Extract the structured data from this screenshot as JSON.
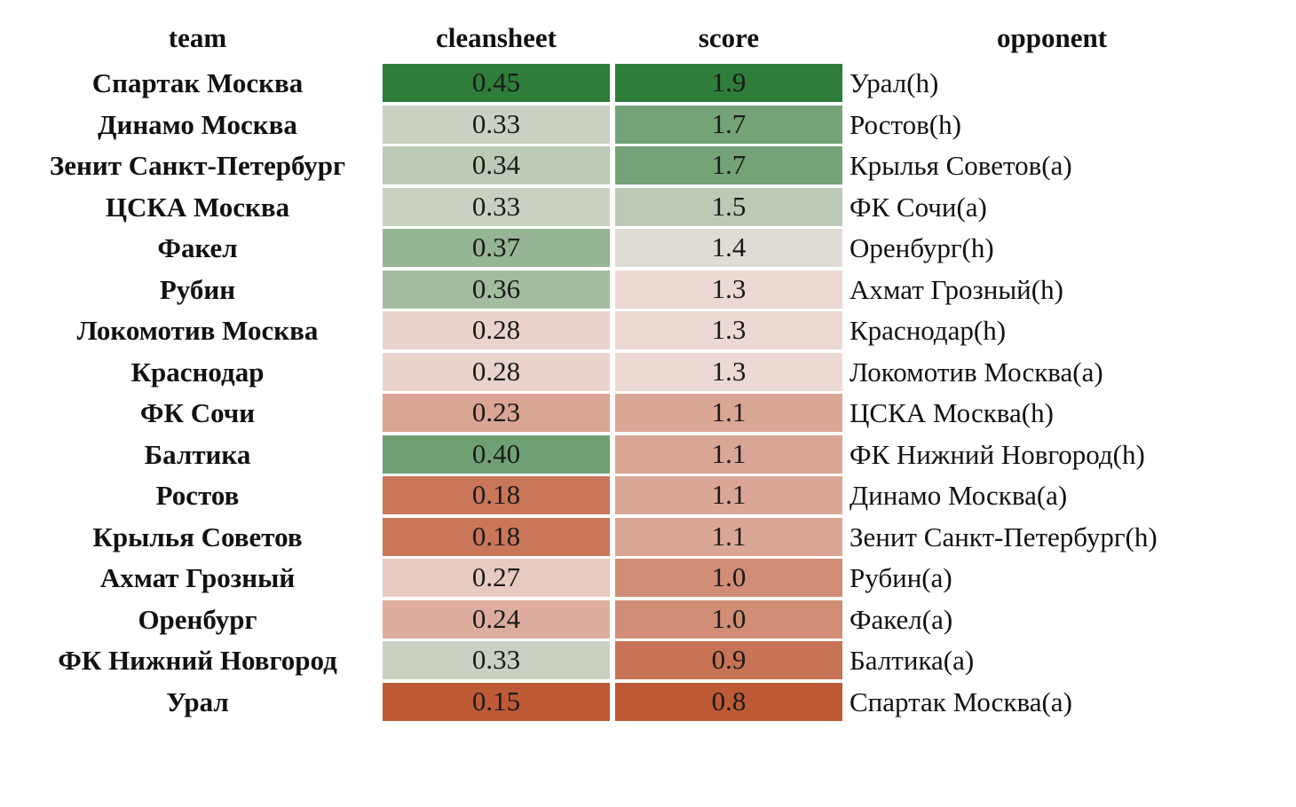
{
  "chart_data": {
    "type": "table",
    "title": "",
    "columns": [
      "team",
      "cleansheet",
      "score",
      "opponent"
    ],
    "rows": [
      {
        "team": "Спартак Москва",
        "cleansheet": "0.45",
        "score": "1.9",
        "opponent": "Урал(h)"
      },
      {
        "team": "Динамо Москва",
        "cleansheet": "0.33",
        "score": "1.7",
        "opponent": "Ростов(h)"
      },
      {
        "team": "Зенит Санкт-Петербург",
        "cleansheet": "0.34",
        "score": "1.7",
        "opponent": "Крылья Советов(a)"
      },
      {
        "team": "ЦСКА Москва",
        "cleansheet": "0.33",
        "score": "1.5",
        "opponent": "ФК Сочи(a)"
      },
      {
        "team": "Факел",
        "cleansheet": "0.37",
        "score": "1.4",
        "opponent": "Оренбург(h)"
      },
      {
        "team": "Рубин",
        "cleansheet": "0.36",
        "score": "1.3",
        "opponent": "Ахмат Грозный(h)"
      },
      {
        "team": "Локомотив Москва",
        "cleansheet": "0.28",
        "score": "1.3",
        "opponent": "Краснодар(h)"
      },
      {
        "team": "Краснодар",
        "cleansheet": "0.28",
        "score": "1.3",
        "opponent": "Локомотив Москва(a)"
      },
      {
        "team": "ФК Сочи",
        "cleansheet": "0.23",
        "score": "1.1",
        "opponent": "ЦСКА Москва(h)"
      },
      {
        "team": "Балтика",
        "cleansheet": "0.40",
        "score": "1.1",
        "opponent": "ФК Нижний Новгород(h)"
      },
      {
        "team": "Ростов",
        "cleansheet": "0.18",
        "score": "1.1",
        "opponent": "Динамо Москва(a)"
      },
      {
        "team": "Крылья Советов",
        "cleansheet": "0.18",
        "score": "1.1",
        "opponent": "Зенит Санкт-Петербург(h)"
      },
      {
        "team": "Ахмат Грозный",
        "cleansheet": "0.27",
        "score": "1.0",
        "opponent": "Рубин(a)"
      },
      {
        "team": "Оренбург",
        "cleansheet": "0.24",
        "score": "1.0",
        "opponent": "Факел(a)"
      },
      {
        "team": "ФК Нижний Новгород",
        "cleansheet": "0.33",
        "score": "0.9",
        "opponent": "Балтика(a)"
      },
      {
        "team": "Урал",
        "cleansheet": "0.15",
        "score": "0.8",
        "opponent": "Спартак Москва(a)"
      }
    ],
    "color_scale": {
      "low": "#bf5a36",
      "mid": "#f1e6e4",
      "high": "#2e7d3b",
      "cleansheet_range": [
        0.15,
        0.45
      ],
      "score_range": [
        0.8,
        1.9
      ]
    }
  }
}
